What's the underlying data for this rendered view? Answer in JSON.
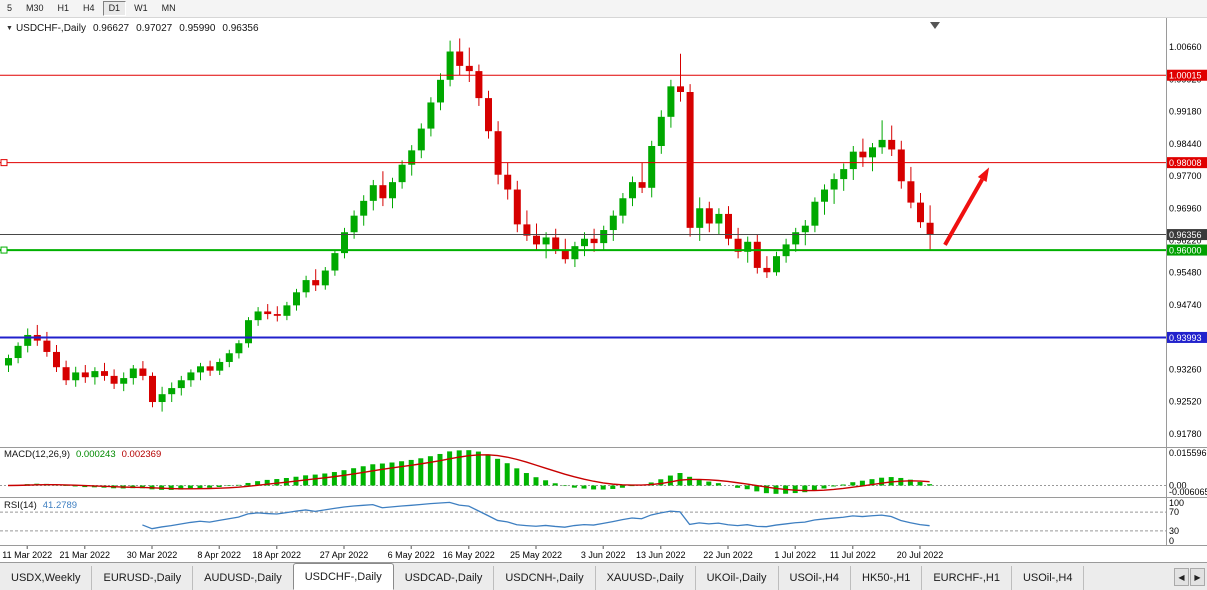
{
  "toolbar": {
    "timeframes": [
      {
        "label": "5",
        "active": false
      },
      {
        "label": "M30",
        "active": false
      },
      {
        "label": "H1",
        "active": false
      },
      {
        "label": "H4",
        "active": false
      },
      {
        "label": "D1",
        "active": true
      },
      {
        "label": "W1",
        "active": false
      },
      {
        "label": "MN",
        "active": false
      }
    ]
  },
  "chart_header": {
    "collapse_icon": "▼",
    "symbol": "USDCHF-,Daily",
    "open": "0.96627",
    "high": "0.97027",
    "low": "0.95990",
    "close": "0.96356"
  },
  "indicators": {
    "macd": {
      "label": "MACD(12,26,9)",
      "value_main": "0.000243",
      "value_signal": "0.002369",
      "axis_max": "0.015596",
      "axis_zero": "0.00",
      "axis_min": "-0.006065",
      "color_hist": "#00b400",
      "color_signal": "#c80000"
    },
    "rsi": {
      "label": "RSI(14)",
      "value": "41.2789",
      "color_line": "#3e7fc1",
      "levels": [
        {
          "value": 100,
          "label": "100"
        },
        {
          "value": 70,
          "label": "70"
        },
        {
          "value": 30,
          "label": "30"
        },
        {
          "value": 0,
          "label": "0"
        }
      ]
    }
  },
  "price_axis": {
    "ticks": [
      "1.00660",
      "0.99920",
      "0.99180",
      "0.98440",
      "0.97700",
      "0.96960",
      "0.96220",
      "0.95480",
      "0.94740",
      "0.94000",
      "0.93260",
      "0.92520",
      "0.91780"
    ],
    "tags": [
      {
        "value": 1.00015,
        "label": "1.00015",
        "color": "#e00000"
      },
      {
        "value": 0.98008,
        "label": "0.98008",
        "color": "#e00000"
      },
      {
        "value": 0.96356,
        "label": "0.96356",
        "color": "#3a3a3a"
      },
      {
        "value": 0.96,
        "label": "0.96000",
        "color": "#00a000"
      },
      {
        "value": 0.93993,
        "label": "0.93993",
        "color": "#2222cc"
      }
    ]
  },
  "hlines": [
    {
      "value": 1.00015,
      "color": "#e00000",
      "width": 1,
      "left_marker": false
    },
    {
      "value": 0.98008,
      "color": "#e00000",
      "width": 1,
      "left_marker": true
    },
    {
      "value": 0.96356,
      "color": "#484848",
      "width": 1,
      "left_marker": false
    },
    {
      "value": 0.96,
      "color": "#00b000",
      "width": 2,
      "left_marker": true
    },
    {
      "value": 0.93993,
      "color": "#2020cc",
      "width": 2,
      "left_marker": false
    }
  ],
  "annotation_arrow": {
    "from_index": 97.6,
    "from_price": 0.9612,
    "to_index": 102.2,
    "to_price": 0.979,
    "color": "#f01010"
  },
  "chart_data": {
    "type": "candlestick",
    "symbol": "USDCHF",
    "timeframe": "Daily",
    "ylim": [
      0.915,
      1.011
    ],
    "colors": {
      "up": "#00a800",
      "down": "#d60000"
    },
    "x_labels": [
      {
        "i": 2,
        "label": "11 Mar 2022"
      },
      {
        "i": 8,
        "label": "21 Mar 2022"
      },
      {
        "i": 15,
        "label": "30 Mar 2022"
      },
      {
        "i": 22,
        "label": "8 Apr 2022"
      },
      {
        "i": 28,
        "label": "18 Apr 2022"
      },
      {
        "i": 35,
        "label": "27 Apr 2022"
      },
      {
        "i": 42,
        "label": "6 May 2022"
      },
      {
        "i": 48,
        "label": "16 May 2022"
      },
      {
        "i": 55,
        "label": "25 May 2022"
      },
      {
        "i": 62,
        "label": "3 Jun 2022"
      },
      {
        "i": 68,
        "label": "13 Jun 2022"
      },
      {
        "i": 75,
        "label": "22 Jun 2022"
      },
      {
        "i": 82,
        "label": "1 Jul 2022"
      },
      {
        "i": 88,
        "label": "11 Jul 2022"
      },
      {
        "i": 95,
        "label": "20 Jul 2022"
      }
    ],
    "candles": [
      [
        0.9335,
        0.936,
        0.932,
        0.9352
      ],
      [
        0.9352,
        0.9388,
        0.934,
        0.938
      ],
      [
        0.938,
        0.942,
        0.9365,
        0.9405
      ],
      [
        0.9405,
        0.9428,
        0.938,
        0.9392
      ],
      [
        0.9392,
        0.9412,
        0.9355,
        0.9366
      ],
      [
        0.9366,
        0.9382,
        0.932,
        0.9331
      ],
      [
        0.9331,
        0.9346,
        0.929,
        0.9301
      ],
      [
        0.9301,
        0.9332,
        0.9286,
        0.9319
      ],
      [
        0.9319,
        0.9336,
        0.9295,
        0.9308
      ],
      [
        0.9308,
        0.9331,
        0.9291,
        0.9322
      ],
      [
        0.9322,
        0.9341,
        0.93,
        0.9311
      ],
      [
        0.9311,
        0.9326,
        0.9281,
        0.9293
      ],
      [
        0.9293,
        0.9319,
        0.9276,
        0.9306
      ],
      [
        0.9306,
        0.9336,
        0.9291,
        0.9328
      ],
      [
        0.9328,
        0.9345,
        0.9301,
        0.9311
      ],
      [
        0.9311,
        0.9319,
        0.9239,
        0.9251
      ],
      [
        0.9251,
        0.9286,
        0.9229,
        0.9269
      ],
      [
        0.9269,
        0.9296,
        0.9251,
        0.9283
      ],
      [
        0.9283,
        0.9311,
        0.9266,
        0.9301
      ],
      [
        0.9301,
        0.9326,
        0.9286,
        0.9319
      ],
      [
        0.9319,
        0.9341,
        0.9301,
        0.9333
      ],
      [
        0.9333,
        0.9346,
        0.9311,
        0.9323
      ],
      [
        0.9323,
        0.9351,
        0.9313,
        0.9343
      ],
      [
        0.9343,
        0.9371,
        0.9331,
        0.9363
      ],
      [
        0.9363,
        0.9393,
        0.9351,
        0.9386
      ],
      [
        0.9386,
        0.9446,
        0.9376,
        0.9439
      ],
      [
        0.9439,
        0.9469,
        0.9426,
        0.9459
      ],
      [
        0.9459,
        0.9476,
        0.9441,
        0.9453
      ],
      [
        0.9453,
        0.9471,
        0.9436,
        0.9449
      ],
      [
        0.9449,
        0.9481,
        0.9439,
        0.9473
      ],
      [
        0.9473,
        0.9511,
        0.9461,
        0.9503
      ],
      [
        0.9503,
        0.9541,
        0.9491,
        0.9531
      ],
      [
        0.9531,
        0.9556,
        0.9506,
        0.9519
      ],
      [
        0.9519,
        0.9561,
        0.9509,
        0.9553
      ],
      [
        0.9553,
        0.9601,
        0.9541,
        0.9593
      ],
      [
        0.9593,
        0.9651,
        0.9581,
        0.9641
      ],
      [
        0.9641,
        0.9691,
        0.9626,
        0.9679
      ],
      [
        0.9679,
        0.9726,
        0.9656,
        0.9713
      ],
      [
        0.9713,
        0.9761,
        0.9691,
        0.9749
      ],
      [
        0.9749,
        0.9781,
        0.9701,
        0.9719
      ],
      [
        0.9719,
        0.9766,
        0.9696,
        0.9756
      ],
      [
        0.9756,
        0.9806,
        0.9741,
        0.9796
      ],
      [
        0.9796,
        0.9841,
        0.9771,
        0.9829
      ],
      [
        0.9829,
        0.9891,
        0.9811,
        0.9879
      ],
      [
        0.9879,
        0.9951,
        0.9861,
        0.9939
      ],
      [
        0.9939,
        1.0006,
        0.9921,
        0.9991
      ],
      [
        0.9991,
        1.0081,
        0.9976,
        1.0056
      ],
      [
        1.0056,
        1.0086,
        1.0001,
        1.0023
      ],
      [
        1.0023,
        1.0065,
        0.9986,
        1.0011
      ],
      [
        1.0011,
        1.0026,
        0.9931,
        0.9949
      ],
      [
        0.9949,
        0.9966,
        0.9856,
        0.9873
      ],
      [
        0.9873,
        0.9896,
        0.9751,
        0.9773
      ],
      [
        0.9773,
        0.9801,
        0.9716,
        0.9739
      ],
      [
        0.9739,
        0.9759,
        0.9641,
        0.9659
      ],
      [
        0.9659,
        0.9691,
        0.9621,
        0.9633
      ],
      [
        0.9633,
        0.9661,
        0.9601,
        0.9613
      ],
      [
        0.9613,
        0.9641,
        0.9581,
        0.9629
      ],
      [
        0.9629,
        0.9649,
        0.9591,
        0.9601
      ],
      [
        0.9601,
        0.9626,
        0.9569,
        0.9579
      ],
      [
        0.9579,
        0.9619,
        0.9561,
        0.9609
      ],
      [
        0.9609,
        0.9641,
        0.9586,
        0.9626
      ],
      [
        0.9626,
        0.9649,
        0.9596,
        0.9616
      ],
      [
        0.9616,
        0.9656,
        0.9601,
        0.9646
      ],
      [
        0.9646,
        0.9691,
        0.9621,
        0.9679
      ],
      [
        0.9679,
        0.9731,
        0.9661,
        0.9719
      ],
      [
        0.9719,
        0.9769,
        0.9701,
        0.9756
      ],
      [
        0.9756,
        0.9801,
        0.9731,
        0.9743
      ],
      [
        0.9743,
        0.9851,
        0.9721,
        0.9839
      ],
      [
        0.9839,
        0.9921,
        0.9821,
        0.9906
      ],
      [
        0.9906,
        0.9991,
        0.9881,
        0.9976
      ],
      [
        0.9976,
        1.0051,
        0.9941,
        0.9963
      ],
      [
        0.9963,
        0.9981,
        0.9631,
        0.9651
      ],
      [
        0.9651,
        0.9721,
        0.9621,
        0.9696
      ],
      [
        0.9696,
        0.9711,
        0.9641,
        0.9661
      ],
      [
        0.9661,
        0.9696,
        0.9636,
        0.9683
      ],
      [
        0.9683,
        0.9701,
        0.9611,
        0.9626
      ],
      [
        0.9626,
        0.9651,
        0.9581,
        0.9596
      ],
      [
        0.9596,
        0.9631,
        0.9571,
        0.9619
      ],
      [
        0.9619,
        0.9636,
        0.9546,
        0.9559
      ],
      [
        0.9559,
        0.9586,
        0.9536,
        0.9549
      ],
      [
        0.9549,
        0.9596,
        0.9541,
        0.9586
      ],
      [
        0.9586,
        0.9626,
        0.9571,
        0.9613
      ],
      [
        0.9613,
        0.9651,
        0.9596,
        0.9641
      ],
      [
        0.9641,
        0.9669,
        0.9611,
        0.9656
      ],
      [
        0.9656,
        0.9721,
        0.9641,
        0.9711
      ],
      [
        0.9711,
        0.9751,
        0.9681,
        0.9739
      ],
      [
        0.9739,
        0.9776,
        0.9706,
        0.9763
      ],
      [
        0.9763,
        0.9799,
        0.9736,
        0.9786
      ],
      [
        0.9786,
        0.9839,
        0.9761,
        0.9826
      ],
      [
        0.9826,
        0.9856,
        0.9791,
        0.9813
      ],
      [
        0.9813,
        0.9846,
        0.9781,
        0.9836
      ],
      [
        0.9836,
        0.9898,
        0.9821,
        0.9853
      ],
      [
        0.9853,
        0.9886,
        0.9816,
        0.9831
      ],
      [
        0.9831,
        0.9851,
        0.9741,
        0.9758
      ],
      [
        0.9758,
        0.9791,
        0.9696,
        0.9709
      ],
      [
        0.9709,
        0.9731,
        0.9651,
        0.9664
      ],
      [
        0.96627,
        0.97027,
        0.9599,
        0.96356
      ]
    ]
  },
  "tabs": {
    "items": [
      {
        "label": "USDX,Weekly",
        "active": false
      },
      {
        "label": "EURUSD-,Daily",
        "active": false
      },
      {
        "label": "AUDUSD-,Daily",
        "active": false
      },
      {
        "label": "USDCHF-,Daily",
        "active": true
      },
      {
        "label": "USDCAD-,Daily",
        "active": false
      },
      {
        "label": "USDCNH-,Daily",
        "active": false
      },
      {
        "label": "XAUUSD-,Daily",
        "active": false
      },
      {
        "label": "UKOil-,Daily",
        "active": false
      },
      {
        "label": "USOil-,H4",
        "active": false
      },
      {
        "label": "HK50-,H1",
        "active": false
      },
      {
        "label": "EURCHF-,H1",
        "active": false
      },
      {
        "label": "USOil-,H4",
        "active": false
      }
    ],
    "scroll_left": "◀",
    "scroll_right": "▶"
  }
}
